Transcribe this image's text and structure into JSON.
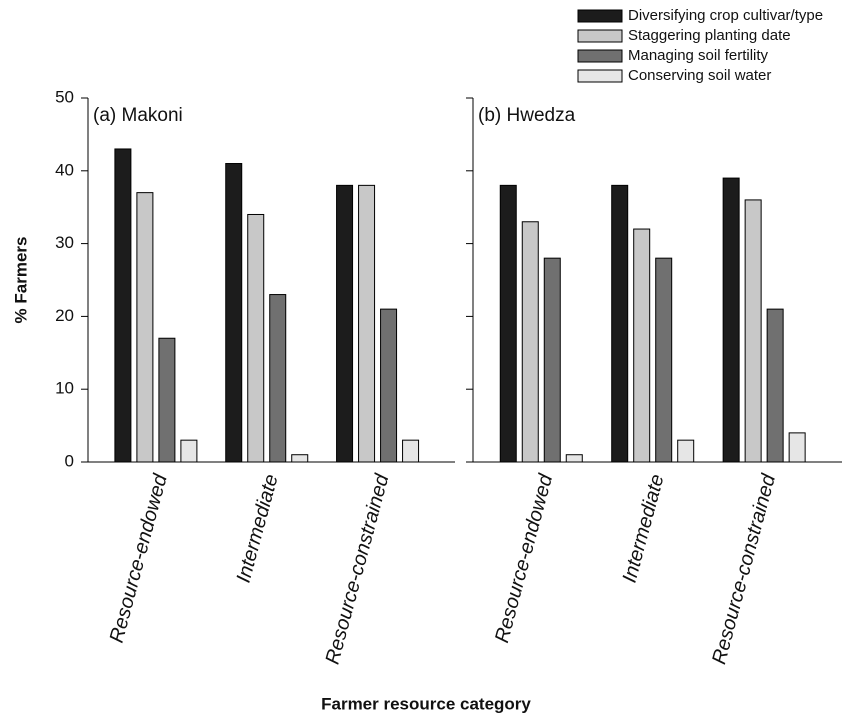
{
  "chart_data": [
    {
      "type": "bar",
      "title": "(a) Makoni",
      "ylabel": "% Farmers",
      "xlabel": "Farmer resource category",
      "categories": [
        "Resource-endowed",
        "Intermediate",
        "Resource-constrained"
      ],
      "series": [
        {
          "name": "Diversifying crop cultivar/type",
          "color": "#1c1c1c",
          "values": [
            43,
            41,
            38
          ]
        },
        {
          "name": "Staggering planting date",
          "color": "#c8c8c8",
          "values": [
            37,
            34,
            38
          ]
        },
        {
          "name": "Managing soil fertility",
          "color": "#707070",
          "values": [
            17,
            23,
            21
          ]
        },
        {
          "name": "Conserving soil water",
          "color": "#e6e6e6",
          "values": [
            3,
            1,
            3
          ]
        }
      ],
      "ylim": [
        0,
        50
      ],
      "yticks": [
        0,
        10,
        20,
        30,
        40,
        50
      ],
      "show_tick_labels": true
    },
    {
      "type": "bar",
      "title": "(b) Hwedza",
      "categories": [
        "Resource-endowed",
        "Intermediate",
        "Resource-constrained"
      ],
      "series": [
        {
          "color": "#1c1c1c",
          "values": [
            38,
            38,
            39
          ]
        },
        {
          "color": "#c8c8c8",
          "values": [
            33,
            32,
            36
          ]
        },
        {
          "color": "#707070",
          "values": [
            28,
            28,
            21
          ]
        },
        {
          "color": "#e6e6e6",
          "values": [
            1,
            3,
            4
          ]
        }
      ],
      "ylim": [
        0,
        50
      ],
      "yticks": [
        0,
        10,
        20,
        30,
        40,
        50
      ],
      "show_tick_labels": false
    }
  ]
}
